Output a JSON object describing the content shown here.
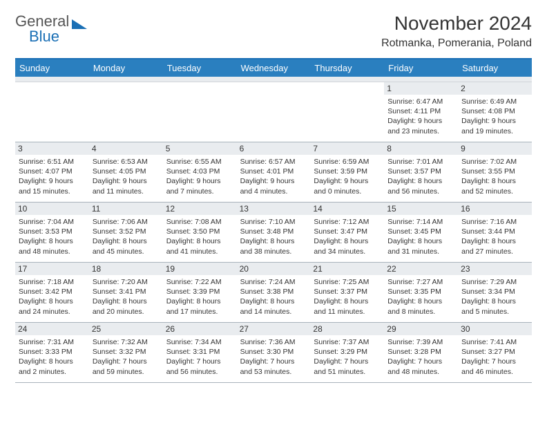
{
  "brand": {
    "part1": "General",
    "part2": "Blue"
  },
  "title": "November 2024",
  "location": "Rotmanka, Pomerania, Poland",
  "colors": {
    "header_bg": "#2a7fbf",
    "header_border": "#1a6fb5",
    "daynum_bg": "#e9ecef",
    "week_border": "#a8b2bb"
  },
  "day_names": [
    "Sunday",
    "Monday",
    "Tuesday",
    "Wednesday",
    "Thursday",
    "Friday",
    "Saturday"
  ],
  "weeks": [
    [
      null,
      null,
      null,
      null,
      null,
      {
        "n": "1",
        "sr": "6:47 AM",
        "ss": "4:11 PM",
        "dl": "9 hours and 23 minutes."
      },
      {
        "n": "2",
        "sr": "6:49 AM",
        "ss": "4:08 PM",
        "dl": "9 hours and 19 minutes."
      }
    ],
    [
      {
        "n": "3",
        "sr": "6:51 AM",
        "ss": "4:07 PM",
        "dl": "9 hours and 15 minutes."
      },
      {
        "n": "4",
        "sr": "6:53 AM",
        "ss": "4:05 PM",
        "dl": "9 hours and 11 minutes."
      },
      {
        "n": "5",
        "sr": "6:55 AM",
        "ss": "4:03 PM",
        "dl": "9 hours and 7 minutes."
      },
      {
        "n": "6",
        "sr": "6:57 AM",
        "ss": "4:01 PM",
        "dl": "9 hours and 4 minutes."
      },
      {
        "n": "7",
        "sr": "6:59 AM",
        "ss": "3:59 PM",
        "dl": "9 hours and 0 minutes."
      },
      {
        "n": "8",
        "sr": "7:01 AM",
        "ss": "3:57 PM",
        "dl": "8 hours and 56 minutes."
      },
      {
        "n": "9",
        "sr": "7:02 AM",
        "ss": "3:55 PM",
        "dl": "8 hours and 52 minutes."
      }
    ],
    [
      {
        "n": "10",
        "sr": "7:04 AM",
        "ss": "3:53 PM",
        "dl": "8 hours and 48 minutes."
      },
      {
        "n": "11",
        "sr": "7:06 AM",
        "ss": "3:52 PM",
        "dl": "8 hours and 45 minutes."
      },
      {
        "n": "12",
        "sr": "7:08 AM",
        "ss": "3:50 PM",
        "dl": "8 hours and 41 minutes."
      },
      {
        "n": "13",
        "sr": "7:10 AM",
        "ss": "3:48 PM",
        "dl": "8 hours and 38 minutes."
      },
      {
        "n": "14",
        "sr": "7:12 AM",
        "ss": "3:47 PM",
        "dl": "8 hours and 34 minutes."
      },
      {
        "n": "15",
        "sr": "7:14 AM",
        "ss": "3:45 PM",
        "dl": "8 hours and 31 minutes."
      },
      {
        "n": "16",
        "sr": "7:16 AM",
        "ss": "3:44 PM",
        "dl": "8 hours and 27 minutes."
      }
    ],
    [
      {
        "n": "17",
        "sr": "7:18 AM",
        "ss": "3:42 PM",
        "dl": "8 hours and 24 minutes."
      },
      {
        "n": "18",
        "sr": "7:20 AM",
        "ss": "3:41 PM",
        "dl": "8 hours and 20 minutes."
      },
      {
        "n": "19",
        "sr": "7:22 AM",
        "ss": "3:39 PM",
        "dl": "8 hours and 17 minutes."
      },
      {
        "n": "20",
        "sr": "7:24 AM",
        "ss": "3:38 PM",
        "dl": "8 hours and 14 minutes."
      },
      {
        "n": "21",
        "sr": "7:25 AM",
        "ss": "3:37 PM",
        "dl": "8 hours and 11 minutes."
      },
      {
        "n": "22",
        "sr": "7:27 AM",
        "ss": "3:35 PM",
        "dl": "8 hours and 8 minutes."
      },
      {
        "n": "23",
        "sr": "7:29 AM",
        "ss": "3:34 PM",
        "dl": "8 hours and 5 minutes."
      }
    ],
    [
      {
        "n": "24",
        "sr": "7:31 AM",
        "ss": "3:33 PM",
        "dl": "8 hours and 2 minutes."
      },
      {
        "n": "25",
        "sr": "7:32 AM",
        "ss": "3:32 PM",
        "dl": "7 hours and 59 minutes."
      },
      {
        "n": "26",
        "sr": "7:34 AM",
        "ss": "3:31 PM",
        "dl": "7 hours and 56 minutes."
      },
      {
        "n": "27",
        "sr": "7:36 AM",
        "ss": "3:30 PM",
        "dl": "7 hours and 53 minutes."
      },
      {
        "n": "28",
        "sr": "7:37 AM",
        "ss": "3:29 PM",
        "dl": "7 hours and 51 minutes."
      },
      {
        "n": "29",
        "sr": "7:39 AM",
        "ss": "3:28 PM",
        "dl": "7 hours and 48 minutes."
      },
      {
        "n": "30",
        "sr": "7:41 AM",
        "ss": "3:27 PM",
        "dl": "7 hours and 46 minutes."
      }
    ]
  ],
  "labels": {
    "sunrise": "Sunrise:",
    "sunset": "Sunset:",
    "daylight": "Daylight:"
  }
}
